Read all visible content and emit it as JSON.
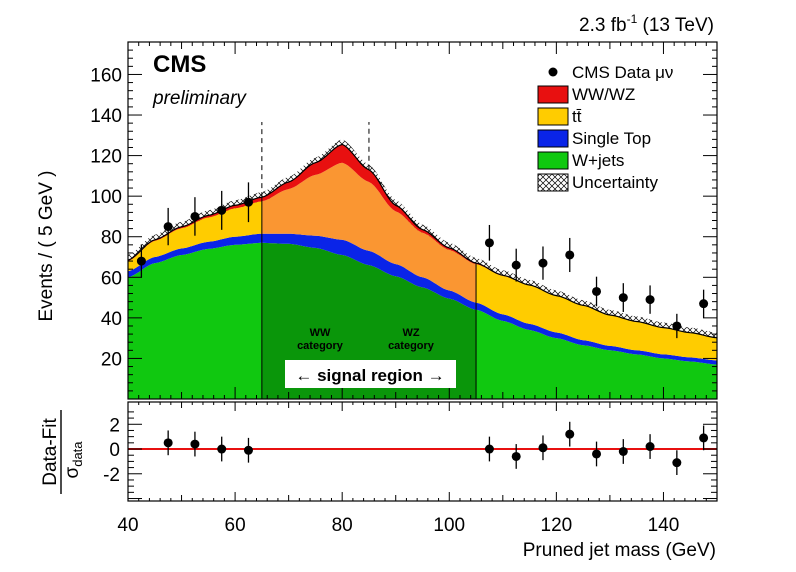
{
  "chart_data": [
    {
      "type": "area",
      "panel": "main",
      "top_right_label": {
        "lumi": "2.3 fb",
        "lumi_exp": "-1",
        "energy": " (13 TeV)"
      },
      "experiment_label": "CMS",
      "status_label": "preliminary",
      "ylabel": "Events / ( 5 GeV )",
      "xlabel": "Pruned jet mass (GeV)",
      "xlim": [
        40,
        150
      ],
      "ylim": [
        0,
        176
      ],
      "x_ticks": [
        40,
        60,
        80,
        100,
        120,
        140
      ],
      "y_ticks": [
        20,
        40,
        60,
        80,
        100,
        120,
        140,
        160
      ],
      "legend": {
        "placement": "top-right",
        "entries": [
          {
            "label": "CMS Data μν",
            "kind": "marker",
            "color": "#000000"
          },
          {
            "label": "WW/WZ",
            "kind": "fill",
            "color": "#e81010"
          },
          {
            "label": "tt̄",
            "kind": "fill",
            "color": "#ffcc00"
          },
          {
            "label": "Single Top",
            "kind": "fill",
            "color": "#0a24e8"
          },
          {
            "label": "W+jets",
            "kind": "fill",
            "color": "#10c810"
          },
          {
            "label": "Uncertainty",
            "kind": "hatch",
            "color": "#000000"
          }
        ]
      },
      "annotations": {
        "ww_category": [
          "WW",
          "category"
        ],
        "wz_category": [
          "WZ",
          "category"
        ],
        "signal_region": "← signal region →"
      },
      "signal_region": [
        65,
        105
      ],
      "category_boundaries": [
        65,
        85
      ],
      "signal_region_fill_color": "#fa9632",
      "signal_region_wjets_color": "#0a960a",
      "series": [
        {
          "name": "W+jets",
          "color": "#10c810",
          "x": [
            40,
            45,
            50,
            55,
            60,
            65,
            70,
            75,
            80,
            85,
            90,
            95,
            100,
            105,
            110,
            115,
            120,
            125,
            130,
            135,
            140,
            145,
            150
          ],
          "values": [
            60,
            67,
            71,
            74,
            76,
            77,
            76.5,
            74.5,
            71,
            66,
            60.5,
            55,
            49.5,
            44,
            38.5,
            34,
            30,
            26.5,
            24,
            22,
            20,
            18.5,
            17
          ]
        },
        {
          "name": "Single Top",
          "color": "#0a24e8",
          "x": [
            40,
            45,
            50,
            55,
            60,
            65,
            70,
            75,
            80,
            85,
            90,
            95,
            100,
            105,
            110,
            115,
            120,
            125,
            130,
            135,
            140,
            145,
            150
          ],
          "values": [
            3,
            3,
            3.2,
            3.5,
            4,
            4.5,
            5,
            6,
            7.5,
            7,
            6,
            5,
            4,
            3.5,
            3.2,
            3,
            2.8,
            2.5,
            2.2,
            2,
            2,
            2,
            2
          ]
        },
        {
          "name": "tt̄",
          "color": "#ffcc00",
          "x": [
            40,
            45,
            50,
            55,
            60,
            65,
            70,
            75,
            80,
            85,
            90,
            95,
            100,
            105,
            110,
            115,
            120,
            125,
            130,
            135,
            140,
            145,
            150
          ],
          "values": [
            5,
            8,
            10,
            12,
            14,
            16,
            22,
            30,
            38,
            34,
            26,
            22,
            20,
            19,
            19,
            19,
            18,
            17,
            15,
            14,
            13,
            12,
            11
          ]
        },
        {
          "name": "WW/WZ",
          "color": "#e81010",
          "x": [
            40,
            45,
            50,
            55,
            60,
            65,
            70,
            75,
            80,
            85,
            90,
            95,
            100,
            105,
            110,
            115,
            120,
            125,
            130,
            135,
            140,
            145,
            150
          ],
          "values": [
            0.5,
            0.5,
            0.7,
            1,
            1.5,
            2,
            3.5,
            6,
            9,
            6,
            3,
            1.5,
            1,
            0.5,
            0.3,
            0.2,
            0.2,
            0.2,
            0.2,
            0.2,
            0.2,
            0.2,
            0.2
          ]
        }
      ],
      "uncertainty_halfwidth": 2.5,
      "data": {
        "name": "CMS Data μν",
        "x": [
          42.5,
          47.5,
          52.5,
          57.5,
          62.5,
          107.5,
          112.5,
          117.5,
          122.5,
          127.5,
          132.5,
          137.5,
          142.5,
          147.5
        ],
        "y": [
          68,
          85,
          90,
          93,
          97,
          77,
          66,
          67,
          71,
          53,
          50,
          49,
          36,
          47
        ],
        "yerr": [
          8.2,
          9.2,
          9.5,
          9.6,
          9.8,
          8.8,
          8.1,
          8.2,
          8.4,
          7.3,
          7.1,
          7,
          6,
          6.9
        ]
      }
    },
    {
      "type": "scatter",
      "panel": "pull",
      "ylabel_numerator": "Data-Fit",
      "ylabel_denominator": "σ",
      "ylabel_denominator_sub": "data",
      "xlim": [
        40,
        150
      ],
      "ylim": [
        -4.2,
        3.8
      ],
      "y_ticks": [
        -2,
        0,
        2
      ],
      "reference_line": 0,
      "reference_line_color": "#e81010",
      "x": [
        42.5,
        47.5,
        52.5,
        57.5,
        62.5,
        107.5,
        112.5,
        117.5,
        122.5,
        127.5,
        132.5,
        137.5,
        142.5,
        147.5
      ],
      "y": [
        null,
        0.5,
        0.4,
        0,
        -0.1,
        0,
        -0.6,
        0.1,
        1.2,
        -0.4,
        -0.2,
        0.2,
        -1.1,
        0.9
      ],
      "yerr": [
        1,
        1,
        1,
        1,
        1,
        1,
        1,
        1,
        1,
        1,
        1,
        1,
        1,
        1
      ]
    }
  ]
}
